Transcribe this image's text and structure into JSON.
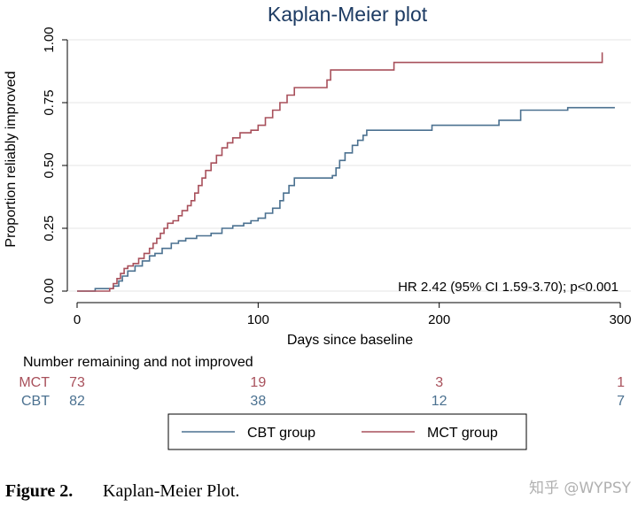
{
  "chart_data": {
    "type": "line",
    "title": "Kaplan-Meier plot",
    "xlabel": "Days since baseline",
    "ylabel": "Proportion reliably improved",
    "xlim": [
      0,
      300
    ],
    "ylim": [
      0,
      1
    ],
    "x_ticks": [
      0,
      100,
      200,
      300
    ],
    "y_ticks": [
      "0.00",
      "0.25",
      "0.50",
      "0.75",
      "1.00"
    ],
    "grid": true,
    "annotation": "HR 2.42 (95% CI 1.59-3.70); p<0.001",
    "legend": {
      "placement": "bottom",
      "entries": [
        "CBT group",
        "MCT group"
      ]
    },
    "series": [
      {
        "name": "CBT group",
        "color": "#4b7190",
        "step": true,
        "points": [
          [
            0,
            0
          ],
          [
            10,
            0.01
          ],
          [
            20,
            0.02
          ],
          [
            23,
            0.04
          ],
          [
            25,
            0.06
          ],
          [
            28,
            0.08
          ],
          [
            32,
            0.1
          ],
          [
            36,
            0.12
          ],
          [
            40,
            0.14
          ],
          [
            43,
            0.15
          ],
          [
            47,
            0.17
          ],
          [
            52,
            0.19
          ],
          [
            56,
            0.2
          ],
          [
            60,
            0.21
          ],
          [
            66,
            0.22
          ],
          [
            74,
            0.23
          ],
          [
            80,
            0.25
          ],
          [
            86,
            0.26
          ],
          [
            92,
            0.27
          ],
          [
            96,
            0.28
          ],
          [
            100,
            0.29
          ],
          [
            104,
            0.31
          ],
          [
            108,
            0.33
          ],
          [
            112,
            0.36
          ],
          [
            114,
            0.39
          ],
          [
            117,
            0.42
          ],
          [
            120,
            0.45
          ],
          [
            141,
            0.46
          ],
          [
            143,
            0.49
          ],
          [
            145,
            0.52
          ],
          [
            148,
            0.55
          ],
          [
            152,
            0.58
          ],
          [
            155,
            0.6
          ],
          [
            158,
            0.62
          ],
          [
            160,
            0.64
          ],
          [
            196,
            0.66
          ],
          [
            233,
            0.68
          ],
          [
            245,
            0.72
          ],
          [
            271,
            0.73
          ],
          [
            297,
            0.73
          ]
        ]
      },
      {
        "name": "MCT group",
        "color": "#a8505b",
        "step": true,
        "points": [
          [
            0,
            0
          ],
          [
            18,
            0.01
          ],
          [
            20,
            0.03
          ],
          [
            22,
            0.05
          ],
          [
            24,
            0.07
          ],
          [
            26,
            0.09
          ],
          [
            28,
            0.1
          ],
          [
            31,
            0.11
          ],
          [
            34,
            0.13
          ],
          [
            37,
            0.15
          ],
          [
            40,
            0.17
          ],
          [
            42,
            0.19
          ],
          [
            44,
            0.21
          ],
          [
            46,
            0.23
          ],
          [
            48,
            0.25
          ],
          [
            50,
            0.27
          ],
          [
            53,
            0.28
          ],
          [
            56,
            0.3
          ],
          [
            58,
            0.32
          ],
          [
            61,
            0.34
          ],
          [
            63,
            0.36
          ],
          [
            65,
            0.39
          ],
          [
            67,
            0.42
          ],
          [
            69,
            0.45
          ],
          [
            71,
            0.48
          ],
          [
            74,
            0.51
          ],
          [
            77,
            0.54
          ],
          [
            80,
            0.57
          ],
          [
            83,
            0.59
          ],
          [
            86,
            0.61
          ],
          [
            90,
            0.63
          ],
          [
            96,
            0.64
          ],
          [
            100,
            0.66
          ],
          [
            104,
            0.69
          ],
          [
            108,
            0.72
          ],
          [
            112,
            0.75
          ],
          [
            116,
            0.78
          ],
          [
            120,
            0.81
          ],
          [
            138,
            0.84
          ],
          [
            140,
            0.88
          ],
          [
            175,
            0.91
          ],
          [
            289,
            0.91
          ],
          [
            290,
            0.95
          ]
        ]
      }
    ],
    "risk_table": {
      "title": "Number remaining and not improved",
      "rows": [
        {
          "label": "MCT",
          "color": "#a8505b",
          "values": [
            "73",
            "19",
            "3",
            "1"
          ]
        },
        {
          "label": "CBT",
          "color": "#4b7190",
          "values": [
            "82",
            "38",
            "12",
            "7"
          ]
        }
      ]
    }
  },
  "caption": {
    "label": "Figure 2.",
    "text": "Kaplan-Meier Plot."
  },
  "watermark": "知乎 @WYPSY"
}
